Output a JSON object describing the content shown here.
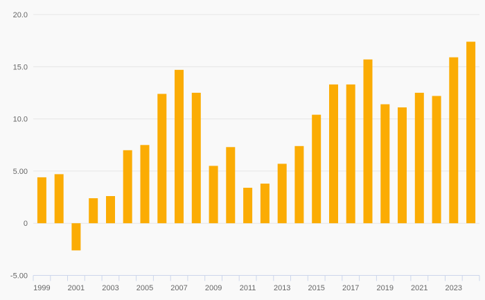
{
  "chart": {
    "background_color": "#f9f9f9",
    "bar_color": "#fbac04",
    "grid_color": "#e6e6e6",
    "axis_line_color": "#ccd6eb",
    "label_color": "#666666"
  },
  "chart_data": {
    "type": "bar",
    "title": "",
    "xlabel": "",
    "ylabel": "",
    "categories": [
      "1999",
      "2000",
      "2001",
      "2002",
      "2003",
      "2004",
      "2005",
      "2006",
      "2007",
      "2008",
      "2009",
      "2010",
      "2011",
      "2012",
      "2013",
      "2014",
      "2015",
      "2016",
      "2017",
      "2018",
      "2019",
      "2020",
      "2021",
      "2022",
      "2023",
      "2024"
    ],
    "values": [
      4.4,
      4.7,
      -2.6,
      2.4,
      2.6,
      7.0,
      7.5,
      12.4,
      14.7,
      12.5,
      5.5,
      7.3,
      3.4,
      3.8,
      5.7,
      7.4,
      10.4,
      13.3,
      13.3,
      15.7,
      11.4,
      11.1,
      12.5,
      12.2,
      15.9,
      17.4
    ],
    "ylim": [
      -5,
      20
    ],
    "grid": true,
    "legend": false,
    "y_ticks": [
      {
        "value": 20,
        "label": "20.0"
      },
      {
        "value": 15,
        "label": "15.0"
      },
      {
        "value": 10,
        "label": "10.0"
      },
      {
        "value": 5,
        "label": "5.00"
      },
      {
        "value": 0,
        "label": "0"
      },
      {
        "value": -5,
        "label": "-5.00"
      }
    ],
    "x_tick_labels": [
      "1999",
      "2001",
      "2003",
      "2005",
      "2007",
      "2009",
      "2011",
      "2013",
      "2015",
      "2017",
      "2019",
      "2021",
      "2023"
    ]
  }
}
